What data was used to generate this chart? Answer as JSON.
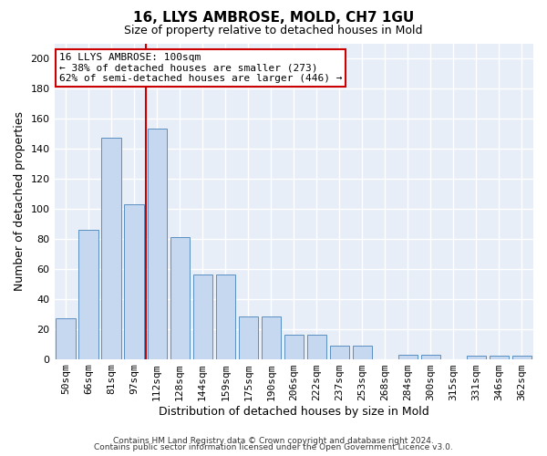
{
  "title": "16, LLYS AMBROSE, MOLD, CH7 1GU",
  "subtitle": "Size of property relative to detached houses in Mold",
  "xlabel": "Distribution of detached houses by size in Mold",
  "ylabel": "Number of detached properties",
  "categories": [
    "50sqm",
    "66sqm",
    "81sqm",
    "97sqm",
    "112sqm",
    "128sqm",
    "144sqm",
    "159sqm",
    "175sqm",
    "190sqm",
    "206sqm",
    "222sqm",
    "237sqm",
    "253sqm",
    "268sqm",
    "284sqm",
    "300sqm",
    "315sqm",
    "331sqm",
    "346sqm",
    "362sqm"
  ],
  "values": [
    27,
    86,
    147,
    103,
    153,
    81,
    56,
    56,
    28,
    28,
    16,
    16,
    9,
    9,
    0,
    3,
    3,
    0,
    2,
    2,
    2
  ],
  "bar_color": "#c5d8f0",
  "bar_edge_color": "#5a8fc0",
  "background_color": "#e8eef8",
  "grid_color": "#ffffff",
  "red_line_x": 3.5,
  "annotation_line1": "16 LLYS AMBROSE: 100sqm",
  "annotation_line2": "← 38% of detached houses are smaller (273)",
  "annotation_line3": "62% of semi-detached houses are larger (446) →",
  "annotation_box_facecolor": "#ffffff",
  "annotation_box_edgecolor": "#cc0000",
  "red_line_color": "#cc0000",
  "ylim": [
    0,
    210
  ],
  "yticks": [
    0,
    20,
    40,
    60,
    80,
    100,
    120,
    140,
    160,
    180,
    200
  ],
  "title_fontsize": 11,
  "subtitle_fontsize": 9,
  "ylabel_fontsize": 9,
  "xlabel_fontsize": 9,
  "tick_fontsize": 8,
  "annot_fontsize": 8,
  "footer1": "Contains HM Land Registry data © Crown copyright and database right 2024.",
  "footer2": "Contains public sector information licensed under the Open Government Licence v3.0.",
  "footer_fontsize": 6.5,
  "figure_facecolor": "#ffffff"
}
